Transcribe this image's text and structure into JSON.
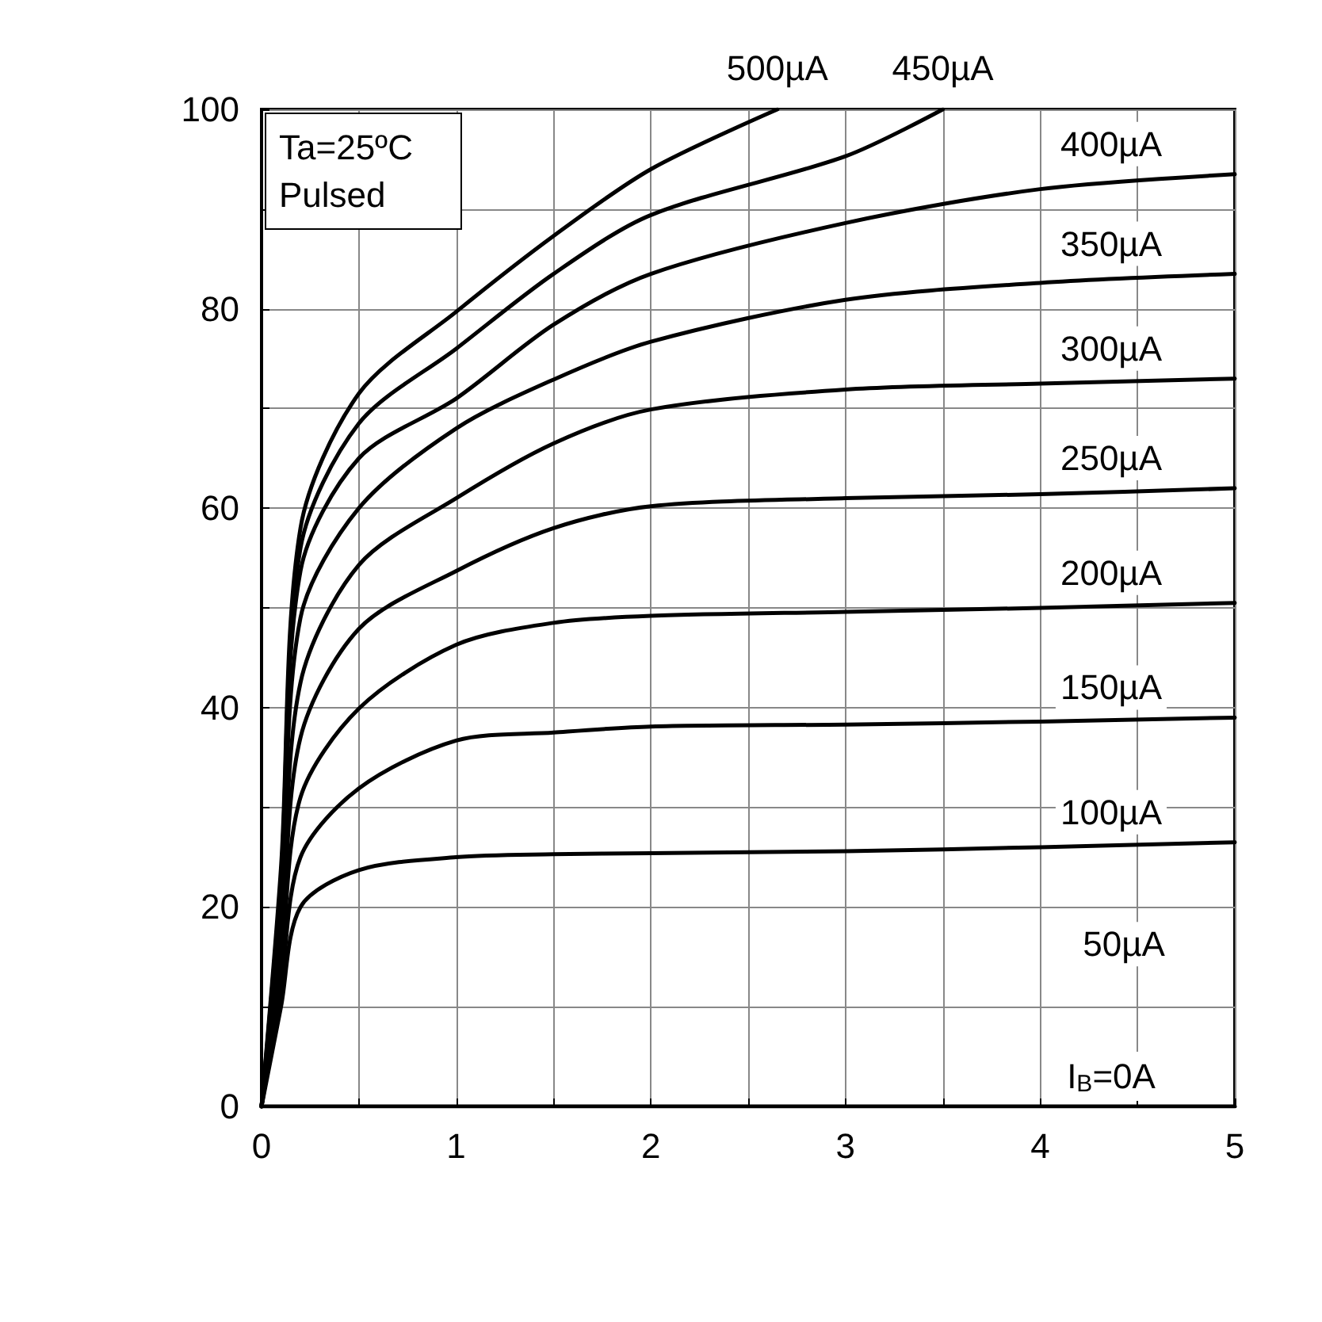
{
  "chart_data": {
    "type": "line",
    "xlim": [
      0,
      5
    ],
    "ylim": [
      0,
      100
    ],
    "xticks": [
      0,
      {
        "value": 0.5,
        "label": null
      },
      1,
      {
        "value": 1.5,
        "label": null
      },
      2,
      {
        "value": 2.5,
        "label": null
      },
      3,
      {
        "value": 3.5,
        "label": null
      },
      4,
      {
        "value": 4.5,
        "label": null
      },
      5
    ],
    "yticks": [
      0,
      {
        "value": 10,
        "label": null
      },
      20,
      {
        "value": 30,
        "label": null
      },
      40,
      {
        "value": 50,
        "label": null
      },
      60,
      {
        "value": 70,
        "label": null
      },
      80,
      {
        "value": 90,
        "label": null
      },
      100
    ],
    "grid": true,
    "marker": "none",
    "line_style": "solid",
    "series": [
      {
        "name": "I$_{B}$=0A",
        "color": "#000000",
        "x": [
          0,
          5
        ],
        "values": [
          0,
          0
        ]
      },
      {
        "name": "100µA",
        "color": "#000000",
        "x": [
          0,
          0.1,
          0.2,
          0.5,
          1,
          1.5,
          2,
          3,
          4,
          5
        ],
        "values": [
          0,
          10,
          20,
          23.7,
          25,
          25.3,
          25.4,
          25.6,
          26,
          26.5
        ]
      },
      {
        "name": "150µA",
        "color": "#000000",
        "x": [
          0,
          0.1,
          0.2,
          0.5,
          1,
          1.5,
          2,
          3,
          4,
          5
        ],
        "values": [
          0,
          12,
          25,
          31.9,
          36.7,
          37.5,
          38.1,
          38.3,
          38.6,
          39
        ]
      },
      {
        "name": "200µA",
        "color": "#000000",
        "x": [
          0,
          0.1,
          0.2,
          0.5,
          1,
          1.5,
          2,
          3,
          4,
          5
        ],
        "values": [
          0,
          14,
          31,
          39.9,
          46.3,
          48.5,
          49.2,
          49.6,
          50,
          50.5
        ]
      },
      {
        "name": "250µA",
        "color": "#000000",
        "x": [
          0,
          0.1,
          0.2,
          0.5,
          1,
          1.5,
          2,
          3,
          4,
          5
        ],
        "values": [
          0,
          16,
          37,
          47.9,
          53.7,
          58,
          60.2,
          61,
          61.4,
          62
        ]
      },
      {
        "name": "300µA",
        "color": "#000000",
        "x": [
          0,
          0.1,
          0.2,
          0.5,
          1,
          1.5,
          2,
          3,
          4,
          5
        ],
        "values": [
          0,
          18,
          42.5,
          54.3,
          61,
          66.5,
          69.9,
          71.9,
          72.5,
          73
        ]
      },
      {
        "name": "350µA",
        "color": "#000000",
        "x": [
          0,
          0.1,
          0.2,
          0.5,
          1,
          1.5,
          2,
          3,
          4,
          5
        ],
        "values": [
          0,
          20,
          49,
          60,
          68,
          72.9,
          76.7,
          80.9,
          82.6,
          83.5
        ]
      },
      {
        "name": "400µA",
        "color": "#000000",
        "x": [
          0,
          0.1,
          0.2,
          0.5,
          1,
          1.5,
          2,
          3,
          4,
          5
        ],
        "values": [
          0,
          22,
          53.7,
          65,
          71,
          78.4,
          83.5,
          88.6,
          92,
          93.5
        ]
      },
      {
        "name": "450µA",
        "color": "#000000",
        "x": [
          0,
          0.1,
          0.2,
          0.5,
          1,
          1.5,
          2,
          3,
          3.5
        ],
        "values": [
          0,
          23,
          56,
          68.5,
          76,
          83.5,
          89.4,
          95.3,
          100
        ]
      },
      {
        "name": "500µA",
        "color": "#000000",
        "x": [
          0,
          0.1,
          0.2,
          0.5,
          1,
          1.5,
          2,
          2.65
        ],
        "values": [
          0,
          24,
          58,
          71.5,
          79.7,
          87.3,
          94,
          100
        ]
      }
    ],
    "annotations": [
      "Ta=25ºC\nPulsed",
      "50µA"
    ]
  }
}
